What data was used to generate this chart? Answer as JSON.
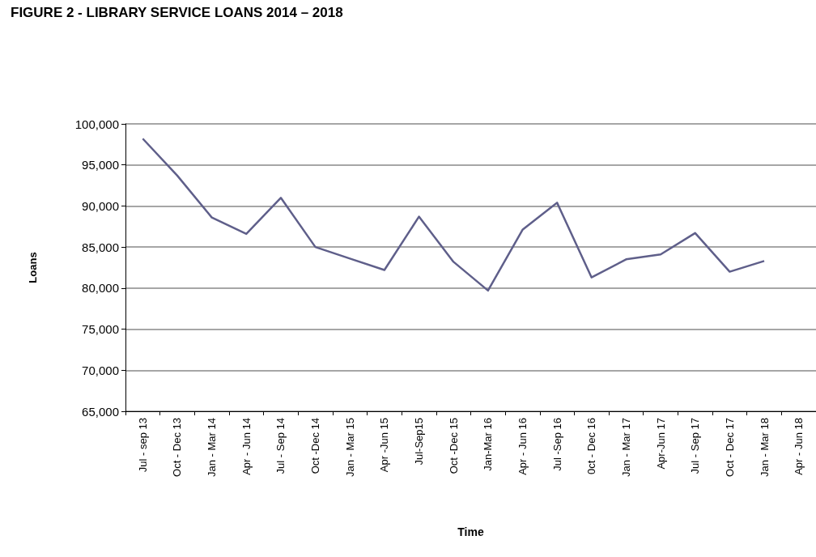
{
  "chart_data": {
    "type": "line",
    "title": "FIGURE 2 - LIBRARY SERVICE LOANS 2014 – 2018",
    "xlabel": "Time",
    "ylabel": "Loans",
    "categories": [
      "Jul - sep 13",
      "Oct - Dec 13",
      "Jan - Mar 14",
      "Apr - Jun 14",
      "Jul - Sep 14",
      "Oct -Dec 14",
      "Jan - Mar 15",
      "Apr -Jun 15",
      "Jul-Sep15",
      "Oct -Dec 15",
      "Jan-Mar 16",
      "Apr - Jun 16",
      "Jul -Sep 16",
      "0ct - Dec 16",
      "Jan - Mar 17",
      "Apr-Jun 17",
      "Jul - Sep 17",
      "Oct - Dec 17",
      "Jan - Mar 18",
      "Apr - Jun 18"
    ],
    "series": [
      {
        "color": "#5f5f8a",
        "values": [
          98200,
          93700,
          88600,
          86600,
          91000,
          85000,
          83600,
          82200,
          88700,
          83200,
          79700,
          87100,
          90400,
          81300,
          83500,
          84100,
          86700,
          82000,
          83300,
          null
        ]
      }
    ],
    "ylim": [
      65000,
      100000
    ],
    "yticks": [
      {
        "value": 65000,
        "label": "65,000"
      },
      {
        "value": 70000,
        "label": "70,000"
      },
      {
        "value": 75000,
        "label": "75,000"
      },
      {
        "value": 80000,
        "label": "80,000"
      },
      {
        "value": 85000,
        "label": "85,000"
      },
      {
        "value": 90000,
        "label": "90,000"
      },
      {
        "value": 95000,
        "label": "95,000"
      },
      {
        "value": 100000,
        "label": "100,000"
      }
    ],
    "grid": "y",
    "marker": "none",
    "line_style": "solid"
  }
}
